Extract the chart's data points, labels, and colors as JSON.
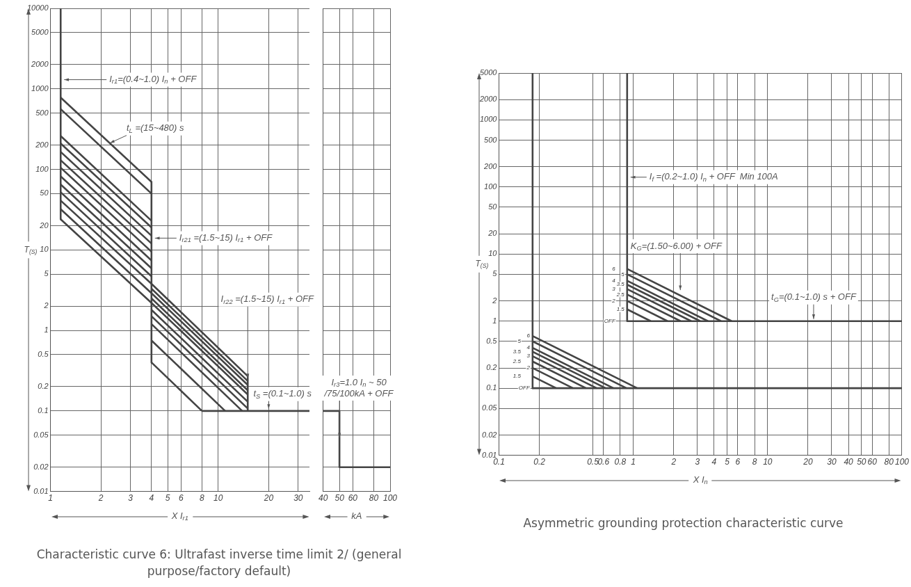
{
  "chart_data": [
    {
      "type": "line",
      "title": "Characteristic curve 6: Ultrafast inverse time limit 2/ (general purpose/factory default)",
      "ylabel": "T$_{(S)}$",
      "xlabel": "X I$_{r1}$",
      "grid": true,
      "legend": false,
      "marker": "none",
      "line_style": "solid",
      "log": "xy",
      "xlim": [
        1,
        35
      ],
      "xticks": [
        1,
        2,
        3,
        4,
        5,
        6,
        8,
        10,
        20,
        30
      ],
      "ylim": [
        0.01,
        10000
      ],
      "yticks": [
        0.01,
        0.02,
        0.05,
        0.1,
        0.2,
        0.5,
        1,
        2,
        5,
        10,
        20,
        50,
        100,
        200,
        500,
        1000,
        2000,
        5000,
        10000
      ],
      "annotations": [
        {
          "text": "I$_{r1}$=(0.4~1.0) I$_{n}$ + OFF",
          "x": 1.15,
          "y": 1300
        },
        {
          "text": "t$_{L}$ =(15~480) s",
          "x": 2.26,
          "y": 200
        },
        {
          "text": "I$_{r21}$ =(1.5~15) I$_{r1}$ + OFF",
          "x": 4,
          "y": 14
        },
        {
          "text": "I$_{r22}$ =(1.5~15) I$_{r1}$ + OFF",
          "x": 15,
          "y": 0.24
        },
        {
          "text": "t$_{S}$ =(0.1~1.0) s",
          "x": 20,
          "y": 0.1
        }
      ],
      "series": [
        {
          "color": "#444444",
          "x": [
            1.15,
            1.15
          ],
          "values": [
            10000,
            24
          ]
        },
        {
          "color": "#444444",
          "x": [
            1.15,
            4
          ],
          "values": [
            780,
            70
          ]
        },
        {
          "color": "#444444",
          "x": [
            1.15,
            4
          ],
          "values": [
            560,
            50
          ]
        },
        {
          "color": "#444444",
          "x": [
            1.15,
            4
          ],
          "values": [
            260,
            23
          ]
        },
        {
          "color": "#444444",
          "x": [
            1.15,
            4
          ],
          "values": [
            210,
            19
          ]
        },
        {
          "color": "#444444",
          "x": [
            1.15,
            4
          ],
          "values": [
            165,
            15
          ]
        },
        {
          "color": "#444444",
          "x": [
            1.15,
            4
          ],
          "values": [
            130,
            12
          ]
        },
        {
          "color": "#444444",
          "x": [
            1.15,
            4
          ],
          "values": [
            105,
            9.5
          ]
        },
        {
          "color": "#444444",
          "x": [
            1.15,
            4
          ],
          "values": [
            82,
            7.4
          ]
        },
        {
          "color": "#444444",
          "x": [
            1.15,
            4
          ],
          "values": [
            65,
            5.9
          ]
        },
        {
          "color": "#444444",
          "x": [
            1.15,
            4
          ],
          "values": [
            52,
            4.7
          ]
        },
        {
          "color": "#444444",
          "x": [
            1.15,
            4,
            15
          ],
          "values": [
            41,
            3.8,
            0.27
          ]
        },
        {
          "color": "#444444",
          "x": [
            1.15,
            4,
            15
          ],
          "values": [
            32,
            2.9,
            0.21
          ]
        },
        {
          "color": "#444444",
          "x": [
            1.15,
            4,
            15
          ],
          "values": [
            24,
            2.2,
            0.16
          ]
        },
        {
          "color": "#444444",
          "x": [
            4,
            4
          ],
          "values": [
            70,
            0.4
          ]
        },
        {
          "color": "#444444",
          "x": [
            4,
            15
          ],
          "values": [
            3.3,
            0.235
          ]
        },
        {
          "color": "#444444",
          "x": [
            4,
            15
          ],
          "values": [
            2.5,
            0.18
          ]
        },
        {
          "color": "#444444",
          "x": [
            4,
            15
          ],
          "values": [
            1.8,
            0.13
          ]
        },
        {
          "color": "#444444",
          "x": [
            4,
            15
          ],
          "values": [
            1.5,
            0.107
          ]
        },
        {
          "color": "#444444",
          "x": [
            4,
            13.9
          ],
          "values": [
            1.2,
            0.1
          ]
        },
        {
          "color": "#444444",
          "x": [
            4,
            11
          ],
          "values": [
            0.75,
            0.1
          ]
        },
        {
          "color": "#444444",
          "x": [
            4,
            8
          ],
          "values": [
            0.4,
            0.1
          ]
        },
        {
          "color": "#444444",
          "x": [
            15,
            15
          ],
          "values": [
            0.1,
            0.28
          ]
        },
        {
          "color": "#444444",
          "x": [
            8,
            35
          ],
          "values": [
            0.1,
            0.1
          ]
        }
      ]
    },
    {
      "type": "line",
      "xlabel": "kA",
      "grid": true,
      "legend": false,
      "marker": "none",
      "line_style": "solid",
      "log": "xy",
      "tick_labels": "x",
      "xlim": [
        40,
        100
      ],
      "xticks": [
        40,
        50,
        60,
        80,
        100
      ],
      "ylim": [
        0.01,
        10000
      ],
      "yticks": [
        0.01,
        0.02,
        0.05,
        0.1,
        0.2,
        0.5,
        1,
        2,
        5,
        10,
        20,
        50,
        100,
        200,
        500,
        1000,
        2000,
        5000,
        10000
      ],
      "annotations": [
        {
          "text": "I$_{r3}$=1.0 I$_{n}$ ~ 50\n/75/100kA + OFF",
          "x": 50,
          "y": 0.044
        }
      ],
      "series": [
        {
          "color": "#444444",
          "x": [
            40,
            50,
            50,
            100
          ],
          "values": [
            0.1,
            0.1,
            0.02,
            0.02
          ]
        }
      ]
    },
    {
      "type": "line",
      "title": "Asymmetric grounding protection characteristic curve",
      "ylabel": "T$_{(S)}$",
      "xlabel": "X I$_{n}$",
      "grid": true,
      "legend": false,
      "marker": "none",
      "line_style": "solid",
      "log": "xy",
      "xlim": [
        0.1,
        100
      ],
      "xticks": [
        0.1,
        0.2,
        0.5,
        0.6,
        0.8,
        1,
        2,
        3,
        4,
        5,
        6,
        8,
        10,
        20,
        30,
        40,
        50,
        60,
        80,
        100
      ],
      "ylim": [
        0.01,
        5000
      ],
      "yticks": [
        0.01,
        0.02,
        0.05,
        0.1,
        0.2,
        0.5,
        1,
        2,
        5,
        10,
        20,
        50,
        100,
        200,
        500,
        1000,
        2000,
        5000
      ],
      "annotations": [
        {
          "text": "I$_{f}$ =(0.2~1.0) I$_{n}$ + OFF  Min 100A",
          "x": 0.9,
          "y": 140
        },
        {
          "text": "K$_{G}$=(1.50~6.00) + OFF",
          "x": 2.24,
          "y": 2.7
        },
        {
          "text": "t$_{G}$=(0.1~1.0) s + OFF",
          "x": 22,
          "y": 1
        },
        {
          "text": "6",
          "x": 0.9,
          "y": 6
        },
        {
          "text": "5",
          "x": 0.9,
          "y": 5
        },
        {
          "text": "4",
          "x": 0.9,
          "y": 4
        },
        {
          "text": "3.5",
          "x": 0.9,
          "y": 3.5
        },
        {
          "text": "3",
          "x": 0.9,
          "y": 3
        },
        {
          "text": "2.5",
          "x": 0.9,
          "y": 2.5
        },
        {
          "text": "2",
          "x": 0.9,
          "y": 2
        },
        {
          "text": "1.5",
          "x": 0.9,
          "y": 1.5
        },
        {
          "text": "OFF",
          "x": 0.9,
          "y": 1
        },
        {
          "text": "6",
          "x": 0.178,
          "y": 0.6
        },
        {
          "text": "5",
          "x": 0.178,
          "y": 0.5
        },
        {
          "text": "4",
          "x": 0.178,
          "y": 0.4
        },
        {
          "text": "3.5",
          "x": 0.178,
          "y": 0.35
        },
        {
          "text": "3",
          "x": 0.178,
          "y": 0.3
        },
        {
          "text": "2.5",
          "x": 0.178,
          "y": 0.25
        },
        {
          "text": "2",
          "x": 0.178,
          "y": 0.2
        },
        {
          "text": "1.5",
          "x": 0.178,
          "y": 0.15
        },
        {
          "text": "OFF",
          "x": 0.178,
          "y": 0.1
        }
      ],
      "series": [
        {
          "color": "#444444",
          "x": [
            0.178,
            0.178
          ],
          "values": [
            5000,
            0.1
          ]
        },
        {
          "color": "#444444",
          "x": [
            0.9,
            0.9
          ],
          "values": [
            5000,
            1
          ]
        },
        {
          "color": "#444444",
          "x": [
            0.9,
            100
          ],
          "values": [
            1,
            1
          ]
        },
        {
          "color": "#444444",
          "x": [
            0.178,
            100
          ],
          "values": [
            0.1,
            0.1
          ]
        },
        {
          "color": "#444444",
          "x": [
            0.9,
            1.35
          ],
          "values": [
            1.5,
            1
          ]
        },
        {
          "color": "#444444",
          "x": [
            0.9,
            1.8
          ],
          "values": [
            2,
            1
          ]
        },
        {
          "color": "#444444",
          "x": [
            0.9,
            2.25
          ],
          "values": [
            2.5,
            1
          ]
        },
        {
          "color": "#444444",
          "x": [
            0.9,
            2.7
          ],
          "values": [
            3,
            1
          ]
        },
        {
          "color": "#444444",
          "x": [
            0.9,
            3.15
          ],
          "values": [
            3.5,
            1
          ]
        },
        {
          "color": "#444444",
          "x": [
            0.9,
            3.6
          ],
          "values": [
            4,
            1
          ]
        },
        {
          "color": "#444444",
          "x": [
            0.9,
            4.5
          ],
          "values": [
            5,
            1
          ]
        },
        {
          "color": "#444444",
          "x": [
            0.9,
            5.4
          ],
          "values": [
            6,
            1
          ]
        },
        {
          "color": "#444444",
          "x": [
            0.178,
            0.267
          ],
          "values": [
            0.15,
            0.1
          ]
        },
        {
          "color": "#444444",
          "x": [
            0.178,
            0.356
          ],
          "values": [
            0.2,
            0.1
          ]
        },
        {
          "color": "#444444",
          "x": [
            0.178,
            0.445
          ],
          "values": [
            0.25,
            0.1
          ]
        },
        {
          "color": "#444444",
          "x": [
            0.178,
            0.534
          ],
          "values": [
            0.3,
            0.1
          ]
        },
        {
          "color": "#444444",
          "x": [
            0.178,
            0.623
          ],
          "values": [
            0.35,
            0.1
          ]
        },
        {
          "color": "#444444",
          "x": [
            0.178,
            0.712
          ],
          "values": [
            0.4,
            0.1
          ]
        },
        {
          "color": "#444444",
          "x": [
            0.178,
            0.89
          ],
          "values": [
            0.5,
            0.1
          ]
        },
        {
          "color": "#444444",
          "x": [
            0.178,
            1.07
          ],
          "values": [
            0.6,
            0.1
          ]
        }
      ]
    }
  ]
}
